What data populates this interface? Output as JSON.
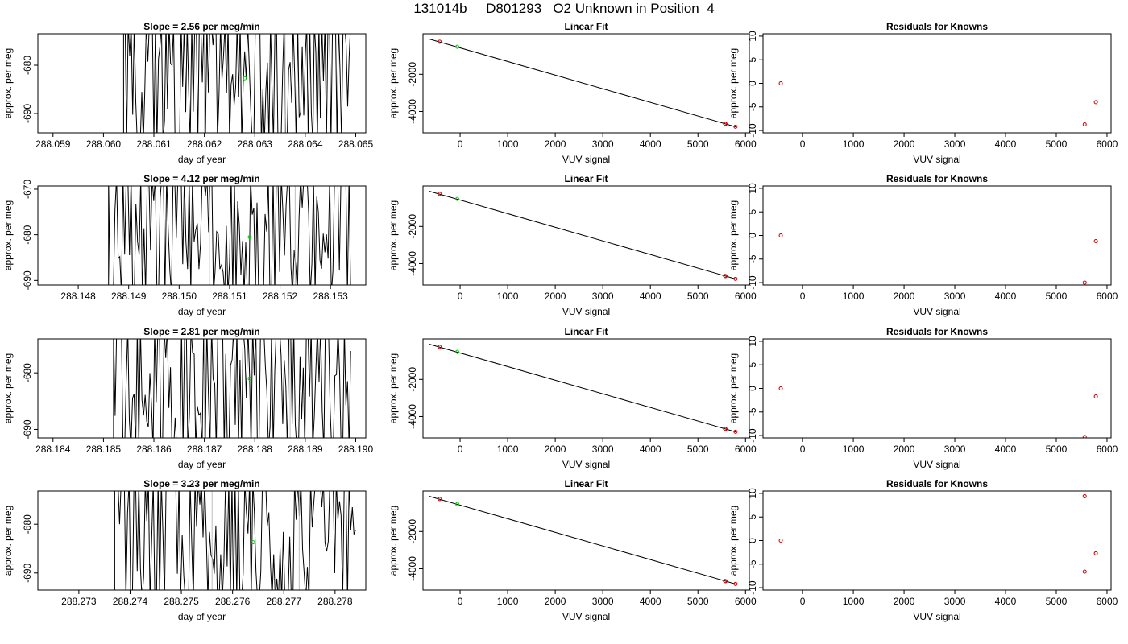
{
  "page": {
    "title": "131014b     D801293   O2 Unknown in Position  4"
  },
  "colors": {
    "line": "#000000",
    "unknown_point": "#00cc00",
    "known_point": "#cc0000",
    "event_marker": "#bebebe",
    "axis": "#000000"
  },
  "chart_data": [
    {
      "type": "line",
      "title": "Slope =  2.56  per meg/min",
      "xlabel": "day of year",
      "ylabel": "approx. per meg",
      "xlim": [
        288.0587,
        288.0652
      ],
      "ylim": [
        -694,
        -673.5
      ],
      "xticks": [
        288.059,
        288.06,
        288.061,
        288.062,
        288.063,
        288.064,
        288.065
      ],
      "xtick_labels": [
        "288.059",
        "288.060",
        "288.061",
        "288.062",
        "288.063",
        "288.064",
        "288.065"
      ],
      "yticks": [
        -680,
        -690
      ],
      "ytick_labels": [
        "-680",
        "-690"
      ],
      "x_start": 288.0604,
      "x_end": 288.0649,
      "seed": 11,
      "vlines": [
        288.062,
        288.0636
      ],
      "unknown_point": {
        "x": 288.0628,
        "y": -682.7
      }
    },
    {
      "type": "scatter",
      "title": "Linear Fit",
      "xlabel": "VUV signal",
      "ylabel": "approx. per meg",
      "xlim": [
        -780,
        6080
      ],
      "ylim": [
        -5150,
        180
      ],
      "xticks": [
        0,
        1000,
        2000,
        3000,
        4000,
        5000,
        6000
      ],
      "xtick_labels": [
        "0",
        "1000",
        "2000",
        "3000",
        "4000",
        "5000",
        "6000"
      ],
      "yticks": [
        -2000,
        -4000
      ],
      "ytick_labels": [
        "-2000",
        "-4000"
      ],
      "fit_line": {
        "x": [
          -650,
          5800
        ],
        "y": [
          -100,
          -4830
        ]
      },
      "known_points": [
        {
          "x": -430,
          "y": -250
        },
        {
          "x": 5570,
          "y": -4660
        },
        {
          "x": 5580,
          "y": -4675
        },
        {
          "x": 5790,
          "y": -4820
        }
      ],
      "unknown_point": {
        "x": -60,
        "y": -520
      }
    },
    {
      "type": "scatter",
      "title": "Residuals for Knowns",
      "xlabel": "VUV signal",
      "ylabel": "approx. per meg",
      "xlim": [
        -780,
        6080
      ],
      "ylim": [
        -10.5,
        10.5
      ],
      "xticks": [
        0,
        1000,
        2000,
        3000,
        4000,
        5000,
        6000
      ],
      "xtick_labels": [
        "0",
        "1000",
        "2000",
        "3000",
        "4000",
        "5000",
        "6000"
      ],
      "yticks": [
        10,
        5,
        0,
        -5,
        -10
      ],
      "ytick_labels": [
        "10",
        "5",
        "0",
        "-5",
        "-10"
      ],
      "known_points": [
        {
          "x": -430,
          "y": 0
        },
        {
          "x": 5560,
          "y": -8.7
        },
        {
          "x": 5780,
          "y": -4.0
        }
      ]
    },
    {
      "type": "line",
      "title": "Slope =  4.12  per meg/min",
      "xlabel": "day of year",
      "ylabel": "approx. per meg",
      "xlim": [
        288.1472,
        288.1537
      ],
      "ylim": [
        -691,
        -669.3
      ],
      "xticks": [
        288.148,
        288.149,
        288.15,
        288.151,
        288.152,
        288.153
      ],
      "xtick_labels": [
        "288.148",
        "288.149",
        "288.150",
        "288.151",
        "288.152",
        "288.153"
      ],
      "yticks": [
        -670,
        -680,
        -690
      ],
      "ytick_labels": [
        "-670",
        "-680",
        "-690"
      ],
      "x_start": 288.1486,
      "x_end": 288.1534,
      "seed": 23,
      "vlines": [
        288.1506,
        288.1523
      ],
      "unknown_point": {
        "x": 288.1514,
        "y": -680.5
      }
    },
    {
      "type": "scatter",
      "title": "Linear Fit",
      "xlabel": "VUV signal",
      "ylabel": "approx. per meg",
      "xlim": [
        -780,
        6080
      ],
      "ylim": [
        -5150,
        180
      ],
      "xticks": [
        0,
        1000,
        2000,
        3000,
        4000,
        5000,
        6000
      ],
      "xtick_labels": [
        "0",
        "1000",
        "2000",
        "3000",
        "4000",
        "5000",
        "6000"
      ],
      "yticks": [
        -2000,
        -4000
      ],
      "ytick_labels": [
        "-2000",
        "-4000"
      ],
      "fit_line": {
        "x": [
          -650,
          5800
        ],
        "y": [
          -100,
          -4830
        ]
      },
      "known_points": [
        {
          "x": -430,
          "y": -250
        },
        {
          "x": 5570,
          "y": -4660
        },
        {
          "x": 5580,
          "y": -4675
        },
        {
          "x": 5790,
          "y": -4820
        }
      ],
      "unknown_point": {
        "x": -60,
        "y": -520
      }
    },
    {
      "type": "scatter",
      "title": "Residuals for Knowns",
      "xlabel": "VUV signal",
      "ylabel": "approx. per meg",
      "xlim": [
        -780,
        6080
      ],
      "ylim": [
        -10.5,
        10.5
      ],
      "xticks": [
        0,
        1000,
        2000,
        3000,
        4000,
        5000,
        6000
      ],
      "xtick_labels": [
        "0",
        "1000",
        "2000",
        "3000",
        "4000",
        "5000",
        "6000"
      ],
      "yticks": [
        10,
        5,
        0,
        -5,
        -10
      ],
      "ytick_labels": [
        "10",
        "5",
        "0",
        "-5",
        "-10"
      ],
      "known_points": [
        {
          "x": -430,
          "y": 0
        },
        {
          "x": 5560,
          "y": -10.0
        },
        {
          "x": 5780,
          "y": -1.2
        }
      ]
    },
    {
      "type": "line",
      "title": "Slope =  2.81  per meg/min",
      "xlabel": "day of year",
      "ylabel": "approx. per meg",
      "xlim": [
        288.1837,
        288.1902
      ],
      "ylim": [
        -691.5,
        -674
      ],
      "xticks": [
        288.184,
        288.185,
        288.186,
        288.187,
        288.188,
        288.189,
        288.19
      ],
      "xtick_labels": [
        "288.184",
        "288.185",
        "288.186",
        "288.187",
        "288.188",
        "288.189",
        "288.190"
      ],
      "yticks": [
        -680,
        -690
      ],
      "ytick_labels": [
        "-680",
        "-690"
      ],
      "x_start": 288.1852,
      "x_end": 288.1899,
      "seed": 37,
      "vlines": [
        288.187,
        288.1887
      ],
      "unknown_point": {
        "x": 288.1879,
        "y": -681.0
      }
    },
    {
      "type": "scatter",
      "title": "Linear Fit",
      "xlabel": "VUV signal",
      "ylabel": "approx. per meg",
      "xlim": [
        -780,
        6080
      ],
      "ylim": [
        -5150,
        180
      ],
      "xticks": [
        0,
        1000,
        2000,
        3000,
        4000,
        5000,
        6000
      ],
      "xtick_labels": [
        "0",
        "1000",
        "2000",
        "3000",
        "4000",
        "5000",
        "6000"
      ],
      "yticks": [
        -2000,
        -4000
      ],
      "ytick_labels": [
        "-2000",
        "-4000"
      ],
      "fit_line": {
        "x": [
          -650,
          5800
        ],
        "y": [
          -100,
          -4830
        ]
      },
      "known_points": [
        {
          "x": -430,
          "y": -250
        },
        {
          "x": 5570,
          "y": -4660
        },
        {
          "x": 5580,
          "y": -4675
        },
        {
          "x": 5790,
          "y": -4820
        }
      ],
      "unknown_point": {
        "x": -60,
        "y": -520
      }
    },
    {
      "type": "scatter",
      "title": "Residuals for Knowns",
      "xlabel": "VUV signal",
      "ylabel": "approx. per meg",
      "xlim": [
        -780,
        6080
      ],
      "ylim": [
        -10.5,
        10.5
      ],
      "xticks": [
        0,
        1000,
        2000,
        3000,
        4000,
        5000,
        6000
      ],
      "xtick_labels": [
        "0",
        "1000",
        "2000",
        "3000",
        "4000",
        "5000",
        "6000"
      ],
      "yticks": [
        10,
        5,
        0,
        -5,
        -10
      ],
      "ytick_labels": [
        "10",
        "5",
        "0",
        "-5",
        "-10"
      ],
      "known_points": [
        {
          "x": -430,
          "y": 0
        },
        {
          "x": 5560,
          "y": -10.3
        },
        {
          "x": 5780,
          "y": -1.7
        }
      ]
    },
    {
      "type": "line",
      "title": "Slope =  3.23  per meg/min",
      "xlabel": "day of year",
      "ylabel": "approx. per meg",
      "xlim": [
        288.2722,
        288.2786
      ],
      "ylim": [
        -693.5,
        -673.2
      ],
      "xticks": [
        288.273,
        288.274,
        288.275,
        288.276,
        288.277,
        288.278
      ],
      "xtick_labels": [
        "288.273",
        "288.274",
        "288.275",
        "288.276",
        "288.277",
        "288.278"
      ],
      "yticks": [
        -680,
        -690
      ],
      "ytick_labels": [
        "-680",
        "-690"
      ],
      "x_start": 288.2737,
      "x_end": 288.2784,
      "seed": 53,
      "vlines": [
        288.2756,
        288.2773
      ],
      "unknown_point": {
        "x": 288.2764,
        "y": -683.7
      }
    },
    {
      "type": "scatter",
      "title": "Linear Fit",
      "xlabel": "VUV signal",
      "ylabel": "approx. per meg",
      "xlim": [
        -780,
        6080
      ],
      "ylim": [
        -5150,
        180
      ],
      "xticks": [
        0,
        1000,
        2000,
        3000,
        4000,
        5000,
        6000
      ],
      "xtick_labels": [
        "0",
        "1000",
        "2000",
        "3000",
        "4000",
        "5000",
        "6000"
      ],
      "yticks": [
        -2000,
        -4000
      ],
      "ytick_labels": [
        "-2000",
        "-4000"
      ],
      "fit_line": {
        "x": [
          -650,
          5800
        ],
        "y": [
          -100,
          -4830
        ]
      },
      "known_points": [
        {
          "x": -430,
          "y": -250
        },
        {
          "x": 5570,
          "y": -4660
        },
        {
          "x": 5580,
          "y": -4675
        },
        {
          "x": 5790,
          "y": -4820
        }
      ],
      "unknown_point": {
        "x": -60,
        "y": -520
      }
    },
    {
      "type": "scatter",
      "title": "Residuals for Knowns",
      "xlabel": "VUV signal",
      "ylabel": "approx. per meg",
      "xlim": [
        -780,
        6080
      ],
      "ylim": [
        -10.5,
        10.5
      ],
      "xticks": [
        0,
        1000,
        2000,
        3000,
        4000,
        5000,
        6000
      ],
      "xtick_labels": [
        "0",
        "1000",
        "2000",
        "3000",
        "4000",
        "5000",
        "6000"
      ],
      "yticks": [
        10,
        5,
        0,
        -5,
        -10
      ],
      "ytick_labels": [
        "10",
        "5",
        "0",
        "-5",
        "-10"
      ],
      "known_points": [
        {
          "x": -430,
          "y": 0
        },
        {
          "x": 5560,
          "y": 9.4
        },
        {
          "x": 5560,
          "y": -6.6
        },
        {
          "x": 5780,
          "y": -2.7
        }
      ]
    }
  ]
}
